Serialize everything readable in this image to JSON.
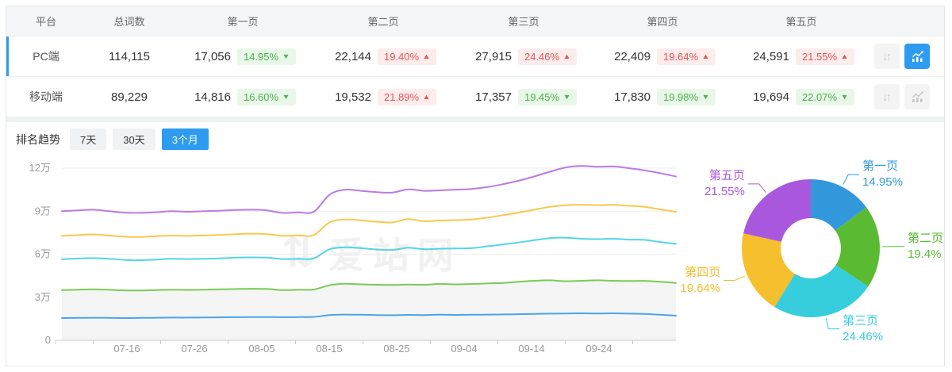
{
  "colors": {
    "accent": "#2d9cf0",
    "badge_up_text": "#e45656",
    "badge_up_bg": "#fdecec",
    "badge_down_text": "#4db34d",
    "badge_down_bg": "#e9f7e9",
    "axis_label": "#999999",
    "gridline": "#eeeeee",
    "axis_line": "#cccccc"
  },
  "icons": {
    "sort_icon": "↓↑",
    "chart_icon": "bar-line-chart",
    "watermark_icon": "⇅"
  },
  "table": {
    "columns": [
      "平台",
      "总词数",
      "第一页",
      "第二页",
      "第三页",
      "第四页",
      "第五页"
    ],
    "rows": [
      {
        "platform": "PC端",
        "total": "114,115",
        "active": true,
        "sort_active": false,
        "chart_active": true,
        "pages": [
          {
            "value": "17,056",
            "change": "14.95%",
            "dir": "down"
          },
          {
            "value": "22,144",
            "change": "19.40%",
            "dir": "up"
          },
          {
            "value": "27,915",
            "change": "24.46%",
            "dir": "up"
          },
          {
            "value": "22,409",
            "change": "19.64%",
            "dir": "up"
          },
          {
            "value": "24,591",
            "change": "21.55%",
            "dir": "up"
          }
        ]
      },
      {
        "platform": "移动端",
        "total": "89,229",
        "active": false,
        "sort_active": false,
        "chart_active": false,
        "pages": [
          {
            "value": "14,816",
            "change": "16.60%",
            "dir": "down"
          },
          {
            "value": "19,532",
            "change": "21.89%",
            "dir": "up"
          },
          {
            "value": "17,357",
            "change": "19.45%",
            "dir": "down"
          },
          {
            "value": "17,830",
            "change": "19.98%",
            "dir": "down"
          },
          {
            "value": "19,694",
            "change": "22.07%",
            "dir": "down"
          }
        ]
      }
    ]
  },
  "trend": {
    "label": "排名趋势",
    "tabs": [
      {
        "label": "7天",
        "active": false
      },
      {
        "label": "30天",
        "active": false
      },
      {
        "label": "3个月",
        "active": true
      }
    ]
  },
  "watermark": "爱站网",
  "chart_data": [
    {
      "type": "line",
      "title": "排名趋势（3个月，PC端，累计词数）",
      "stacked_cumulative": true,
      "grid": true,
      "legend": "none",
      "ylim": [
        0,
        120000
      ],
      "y_ticks": [
        "0",
        "3万",
        "6万",
        "9万",
        "12万"
      ],
      "x_ticks": [
        "07-16",
        "07-26",
        "08-05",
        "08-15",
        "08-25",
        "09-04",
        "09-14",
        "09-24"
      ],
      "unit": "万",
      "series": [
        {
          "name": "第一页",
          "color": "#4ba4e8",
          "area": null,
          "values_wan": [
            1.55,
            1.56,
            1.57,
            1.56,
            1.55,
            1.56,
            1.57,
            1.58,
            1.58,
            1.59,
            1.6,
            1.61,
            1.62,
            1.62,
            1.61,
            1.62,
            1.63,
            1.76,
            1.79,
            1.78,
            1.76,
            1.75,
            1.77,
            1.76,
            1.78,
            1.77,
            1.78,
            1.79,
            1.8,
            1.82,
            1.84,
            1.86,
            1.87,
            1.88,
            1.87,
            1.88,
            1.86,
            1.84,
            1.78,
            1.72
          ]
        },
        {
          "name": "第二页",
          "color": "#79cb57",
          "area": "#f5f5f5",
          "values_wan": [
            3.5,
            3.53,
            3.55,
            3.52,
            3.48,
            3.47,
            3.5,
            3.53,
            3.51,
            3.53,
            3.55,
            3.57,
            3.59,
            3.58,
            3.5,
            3.52,
            3.54,
            3.84,
            3.94,
            3.9,
            3.87,
            3.86,
            3.88,
            3.87,
            3.93,
            3.9,
            3.92,
            3.96,
            4.0,
            4.08,
            4.15,
            4.18,
            4.12,
            4.15,
            4.18,
            4.15,
            4.13,
            4.14,
            4.08,
            4.0
          ]
        },
        {
          "name": "第三页",
          "color": "#52d5e5",
          "area": null,
          "values_wan": [
            5.65,
            5.7,
            5.73,
            5.68,
            5.6,
            5.58,
            5.63,
            5.68,
            5.66,
            5.68,
            5.71,
            5.76,
            5.78,
            5.76,
            5.66,
            5.68,
            5.71,
            6.35,
            6.48,
            6.42,
            6.33,
            6.3,
            6.45,
            6.35,
            6.38,
            6.4,
            6.42,
            6.55,
            6.68,
            6.82,
            6.98,
            7.12,
            7.15,
            7.08,
            7.05,
            7.08,
            7.02,
            7.0,
            6.85,
            6.72
          ]
        },
        {
          "name": "第四页",
          "color": "#fac74f",
          "area": null,
          "values_wan": [
            7.28,
            7.33,
            7.38,
            7.3,
            7.22,
            7.2,
            7.26,
            7.3,
            7.28,
            7.31,
            7.34,
            7.4,
            7.43,
            7.4,
            7.28,
            7.31,
            7.34,
            8.22,
            8.42,
            8.36,
            8.26,
            8.22,
            8.45,
            8.3,
            8.35,
            8.38,
            8.42,
            8.55,
            8.72,
            8.9,
            9.1,
            9.3,
            9.42,
            9.45,
            9.42,
            9.44,
            9.38,
            9.3,
            9.12,
            8.96
          ]
        },
        {
          "name": "第五页",
          "color": "#bb7ae6",
          "area": null,
          "values_wan": [
            9.0,
            9.05,
            9.1,
            9.0,
            8.9,
            8.88,
            8.93,
            9.0,
            8.96,
            9.0,
            9.03,
            9.08,
            9.1,
            9.06,
            8.88,
            8.92,
            8.96,
            10.15,
            10.5,
            10.42,
            10.33,
            10.3,
            10.52,
            10.42,
            10.45,
            10.5,
            10.55,
            10.68,
            10.88,
            11.12,
            11.42,
            11.75,
            12.05,
            12.15,
            12.1,
            12.12,
            12.0,
            11.85,
            11.65,
            11.42
          ]
        }
      ]
    },
    {
      "type": "pie",
      "subtype": "donut",
      "title": "页面分布占比",
      "slices": [
        {
          "label": "第一页",
          "value": 14.95,
          "pct_label": "14.95%",
          "color": "#3398db"
        },
        {
          "label": "第二页",
          "value": 19.4,
          "pct_label": "19.4%",
          "color": "#5abb33"
        },
        {
          "label": "第三页",
          "value": 24.46,
          "pct_label": "24.46%",
          "color": "#36cddc"
        },
        {
          "label": "第四页",
          "value": 19.64,
          "pct_label": "19.64%",
          "color": "#f5bf2d"
        },
        {
          "label": "第五页",
          "value": 21.55,
          "pct_label": "21.55%",
          "color": "#a958dd"
        }
      ]
    }
  ]
}
